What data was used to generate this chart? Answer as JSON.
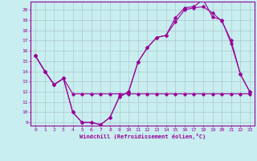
{
  "xlabel": "Windchill (Refroidissement éolien,°C)",
  "bg_color": "#c8eef0",
  "line_color": "#990099",
  "grid_color": "#b0c8cc",
  "xlim": [
    -0.5,
    23.5
  ],
  "ylim": [
    8.7,
    20.8
  ],
  "yticks": [
    9,
    10,
    11,
    12,
    13,
    14,
    15,
    16,
    17,
    18,
    19,
    20
  ],
  "xticks": [
    0,
    1,
    2,
    3,
    4,
    5,
    6,
    7,
    8,
    9,
    10,
    11,
    12,
    13,
    14,
    15,
    16,
    17,
    18,
    19,
    20,
    21,
    22,
    23
  ],
  "line1_x": [
    0,
    1,
    2,
    3,
    4,
    5,
    6,
    7,
    8,
    9,
    10,
    11,
    12,
    13,
    14,
    15,
    16,
    17,
    18,
    19,
    20,
    21,
    22,
    23
  ],
  "line1_y": [
    15.5,
    14.0,
    12.7,
    13.3,
    10.0,
    9.0,
    9.0,
    8.8,
    9.5,
    11.5,
    12.0,
    14.9,
    16.3,
    17.3,
    17.5,
    18.8,
    20.0,
    20.2,
    20.3,
    19.7,
    18.9,
    17.0,
    13.7,
    12.0
  ],
  "line2_x": [
    0,
    1,
    2,
    3,
    4,
    5,
    6,
    7,
    8,
    9,
    10,
    11,
    12,
    13,
    14,
    15,
    16,
    17,
    18,
    19,
    20,
    21,
    22,
    23
  ],
  "line2_y": [
    15.5,
    14.0,
    12.7,
    13.3,
    11.8,
    11.8,
    11.8,
    11.8,
    11.8,
    11.8,
    11.8,
    11.8,
    11.8,
    11.8,
    11.8,
    11.8,
    11.8,
    11.8,
    11.8,
    11.8,
    11.8,
    11.8,
    11.8,
    11.8
  ],
  "line3_x": [
    0,
    1,
    2,
    3,
    4,
    5,
    6,
    7,
    8,
    9,
    10,
    11,
    12,
    13,
    14,
    15,
    16,
    17,
    18,
    19,
    20,
    21,
    22,
    23
  ],
  "line3_y": [
    15.5,
    14.0,
    12.7,
    13.3,
    10.0,
    9.0,
    9.0,
    8.8,
    9.5,
    11.5,
    12.0,
    14.9,
    16.3,
    17.3,
    17.5,
    19.2,
    20.2,
    20.3,
    21.0,
    19.3,
    19.0,
    16.7,
    13.7,
    12.0
  ]
}
